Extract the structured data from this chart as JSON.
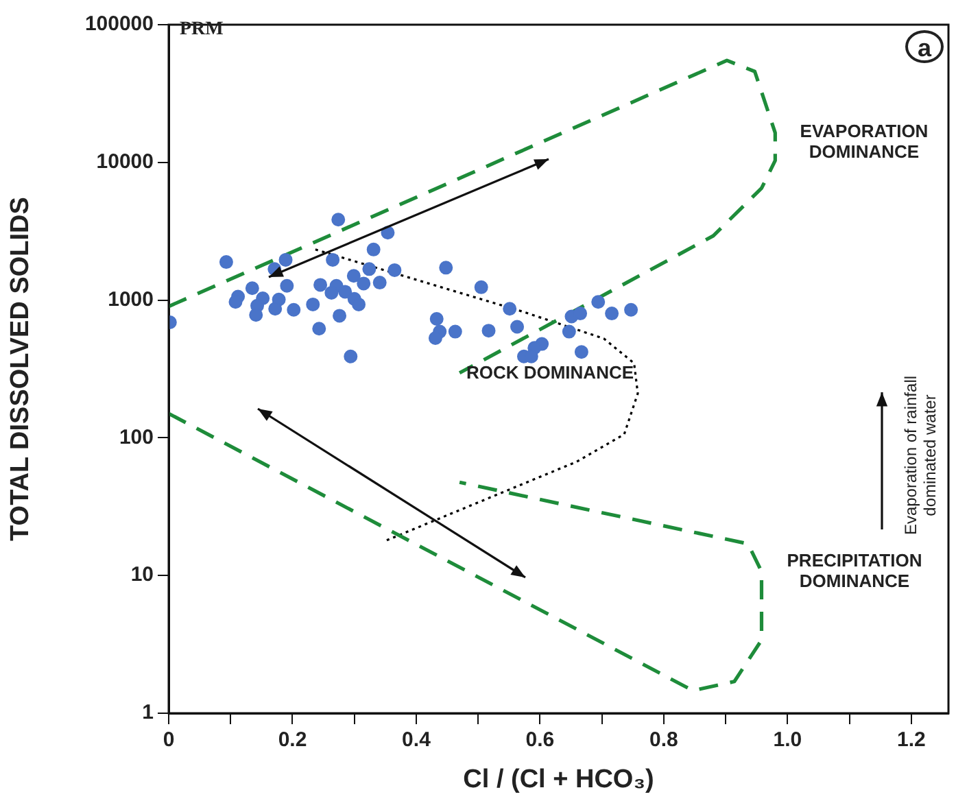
{
  "chart_data": {
    "type": "scatter",
    "xlabel": "Cl / (Cl + HCO₃)",
    "ylabel": "TOTAL DISSOLVED SOLIDS",
    "annotations": [
      "PRM",
      "a",
      "EVAPORATION DOMINANCE",
      "ROCK DOMINANCE",
      "PRECIPITATION DOMINANCE",
      "Evaporation of rainfall dominated water"
    ],
    "log": "y",
    "grid": false,
    "legend": false,
    "marker": "circle",
    "xlim": [
      0,
      1.26
    ],
    "ylim": [
      1,
      100000
    ],
    "xticks": [
      0,
      {
        "value": 0.1,
        "label": null
      },
      0.2,
      {
        "value": 0.3,
        "label": null
      },
      0.4,
      {
        "value": 0.5,
        "label": null
      },
      0.6,
      {
        "value": 0.7,
        "label": null
      },
      0.8,
      {
        "value": 0.9,
        "label": null
      },
      {
        "value": 1,
        "label": "1.0"
      },
      {
        "value": 1.1,
        "label": null
      },
      1.2
    ],
    "yticks": [
      1,
      10,
      100,
      1000,
      10000,
      100000
    ],
    "series": [
      {
        "type": "scatter",
        "color": "#4a74c9",
        "x": [
          0.274,
          0.093,
          0.189,
          0.171,
          0.265,
          0.354,
          0.331,
          0.365,
          0.448,
          0.324,
          0.299,
          0.315,
          0.341,
          0.245,
          0.271,
          0.191,
          0.135,
          0.263,
          0.285,
          0.112,
          0.152,
          0.178,
          0.108,
          0.143,
          0.172,
          0.202,
          0.233,
          0.3,
          0.307,
          0.141,
          0.276,
          0.243,
          0.002,
          0.294,
          0.433,
          0.438,
          0.431,
          0.463,
          0.505,
          0.551,
          0.517,
          0.563,
          0.651,
          0.665,
          0.694,
          0.716,
          0.747,
          0.647,
          0.603,
          0.591,
          0.574,
          0.586,
          0.667
        ],
        "values": [
          3840,
          1890,
          1960,
          1680,
          1960,
          3090,
          2330,
          1650,
          1720,
          1680,
          1500,
          1320,
          1340,
          1290,
          1270,
          1270,
          1220,
          1130,
          1150,
          1060,
          1030,
          1010,
          970,
          910,
          865,
          850,
          930,
          1020,
          930,
          780,
          770,
          620,
          690,
          390,
          730,
          590,
          530,
          590,
          1240,
          865,
          600,
          640,
          760,
          800,
          970,
          800,
          850,
          590,
          480,
          450,
          390,
          390,
          420
        ]
      },
      {
        "type": "line",
        "color": "#1e8c3a",
        "line_style": "dashed",
        "marker": "none",
        "x": [
          0,
          0.902,
          0.947,
          0.98,
          0.98,
          0.958,
          0.88,
          0.47
        ],
        "values": [
          900,
          55000,
          45700,
          16400,
          10300,
          6500,
          2930,
          296
        ]
      },
      {
        "type": "line",
        "color": "#1e8c3a",
        "line_style": "dashed",
        "marker": "none",
        "x": [
          0,
          0.847,
          0.914,
          0.958,
          0.958,
          0.936,
          0.47
        ],
        "values": [
          150,
          1.46,
          1.7,
          3.4,
          10.7,
          17,
          47.5
        ]
      },
      {
        "type": "line",
        "color": "#000000",
        "line_style": "dotted",
        "marker": "none",
        "x": [
          0.237,
          0.57,
          0.703,
          0.752,
          0.758,
          0.736,
          0.659,
          0.348
        ],
        "values": [
          2330,
          830,
          526,
          348,
          210,
          106,
          67,
          17.7
        ]
      }
    ]
  }
}
